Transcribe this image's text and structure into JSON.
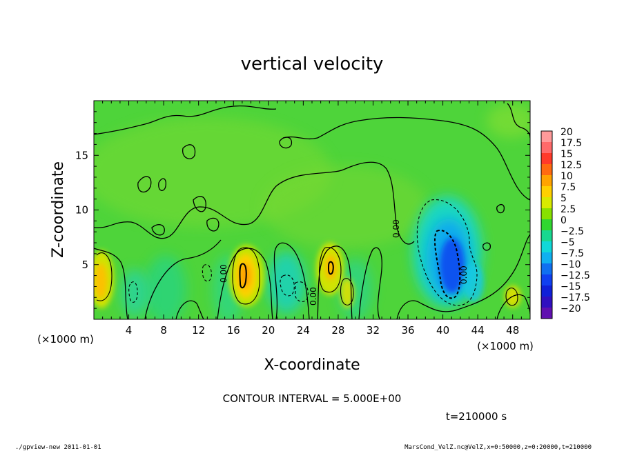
{
  "footer": {
    "left": "./gpview-new   2011-01-01",
    "right": "MarsCond_VelZ.nc@VelZ,x=0:50000,z=0:20000,t=210000"
  },
  "chart_data": {
    "type": "heatmap",
    "title": "vertical velocity",
    "xlabel": "X-coordinate",
    "ylabel": "Z-coordinate",
    "x_unit": "(×1000 m)",
    "y_unit": "(×1000 m)",
    "xlim": [
      0,
      50
    ],
    "ylim": [
      0,
      20
    ],
    "x_ticks": [
      "4",
      "8",
      "12",
      "16",
      "20",
      "24",
      "28",
      "32",
      "36",
      "40",
      "44",
      "48"
    ],
    "y_ticks": [
      "5",
      "10",
      "15"
    ],
    "contour_interval_text": "CONTOUR INTERVAL = 5.000E+00",
    "time_text": "t=210000 s",
    "contour_labels": [
      "0.00",
      "0.00",
      "0.00",
      "0.00"
    ],
    "colorbar": {
      "labels": [
        "20",
        "17.5",
        "15",
        "12.5",
        "10",
        "7.5",
        "5",
        "2.5",
        "0",
        "−2.5",
        "−5",
        "−7.5",
        "−10",
        "−12.5",
        "−15",
        "−17.5",
        "−20"
      ],
      "levels": [
        20,
        17.5,
        15,
        12.5,
        10,
        7.5,
        5,
        2.5,
        0,
        -2.5,
        -5,
        -7.5,
        -10,
        -12.5,
        -15,
        -17.5,
        -20
      ],
      "colors": [
        "#ff9a9a",
        "#ff6a6a",
        "#ff3a2a",
        "#ff6a10",
        "#ffa300",
        "#ffd000",
        "#d8ea00",
        "#88e000",
        "#30d630",
        "#18d890",
        "#10d8d8",
        "#10b0f0",
        "#1070f0",
        "#1040f0",
        "#1020d8",
        "#3010c0",
        "#6010b0"
      ]
    },
    "features": [
      {
        "kind": "updraft",
        "x": 1.0,
        "z": 3.5,
        "peak": 7.5
      },
      {
        "kind": "updraft",
        "x": 17.5,
        "z": 4.0,
        "peak": 10
      },
      {
        "kind": "updraft",
        "x": 27.0,
        "z": 4.5,
        "peak": 10
      },
      {
        "kind": "updraft",
        "x": 29.0,
        "z": 3.0,
        "peak": 5
      },
      {
        "kind": "updraft",
        "x": 48.0,
        "z": 2.0,
        "peak": 5
      },
      {
        "kind": "downdraft",
        "x": 40.5,
        "z": 5.5,
        "peak": -12.5
      },
      {
        "kind": "downdraft",
        "x": 21.5,
        "z": 3.5,
        "peak": -5
      },
      {
        "kind": "downdraft",
        "x": 4.5,
        "z": 2.5,
        "peak": -2.5
      }
    ],
    "grid": false,
    "legend_placement": "right"
  }
}
